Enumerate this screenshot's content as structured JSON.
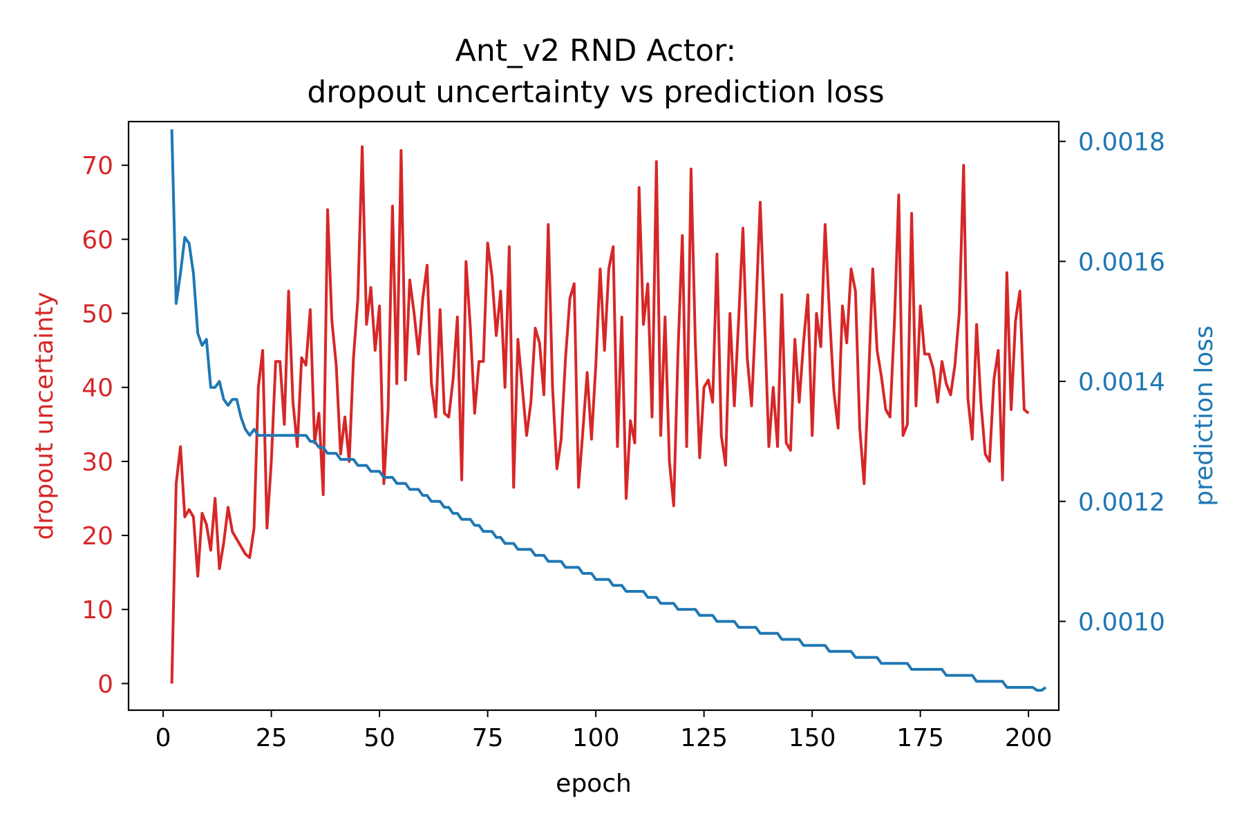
{
  "chart_data": {
    "type": "line",
    "title": "Ant_v2 RND Actor:",
    "subtitle": "dropout uncertainty vs prediction loss",
    "xlabel": "epoch",
    "x_ticks": [
      "0",
      "25",
      "50",
      "75",
      "100",
      "125",
      "150",
      "175",
      "200"
    ],
    "xlim": [
      -8,
      207
    ],
    "left_axis": {
      "label": "dropout uncertainty",
      "color": "#d62728",
      "ticks": [
        "0",
        "10",
        "20",
        "30",
        "40",
        "50",
        "60",
        "70"
      ],
      "ylim": [
        -3.6,
        75.9
      ]
    },
    "right_axis": {
      "label": "prediction loss",
      "color": "#1f77b4",
      "ticks": [
        "0.0010",
        "0.0012",
        "0.0014",
        "0.0016",
        "0.0018"
      ],
      "ylim": [
        0.000852,
        0.001833
      ]
    },
    "grid": false,
    "series": [
      {
        "axis": "left",
        "color": "#d62728",
        "x_start": 2,
        "x_step": 1,
        "values": [
          0,
          27,
          32,
          22.5,
          23.5,
          22.5,
          14.5,
          23,
          21.5,
          18,
          25,
          15.5,
          19,
          23.8,
          20.5,
          19.5,
          18.5,
          17.5,
          17,
          21,
          40,
          45,
          21,
          30,
          43.5,
          43.5,
          35,
          53,
          38,
          32,
          44,
          43,
          50.5,
          32.5,
          36.5,
          25.5,
          64,
          49,
          43,
          31,
          36,
          30,
          44,
          52,
          72.5,
          48.5,
          53.5,
          45,
          51,
          27,
          37,
          64.5,
          40.5,
          72,
          41,
          54.5,
          50,
          44.5,
          52,
          56.5,
          40.5,
          36,
          50.5,
          36.5,
          36,
          41,
          49.5,
          27.5,
          57,
          48,
          36.5,
          43.5,
          43.5,
          59.5,
          55,
          47,
          53,
          40,
          59,
          26.5,
          46.5,
          40,
          33.5,
          38,
          48,
          46,
          39,
          62,
          40,
          29,
          33,
          44,
          52,
          54,
          26.5,
          34,
          42,
          33,
          43,
          56,
          45,
          56,
          59,
          32,
          49.5,
          25,
          35.5,
          32.5,
          67,
          48.5,
          54,
          36,
          70.5,
          33.5,
          49.5,
          30,
          24,
          45,
          60.5,
          32,
          69.5,
          46,
          30.5,
          40,
          41,
          38,
          58,
          33.5,
          29.5,
          50,
          37.5,
          49,
          61.5,
          44,
          37.5,
          50.5,
          65,
          49,
          32,
          40,
          32,
          52.5,
          32.5,
          31.5,
          46.5,
          38,
          46,
          52.5,
          33.5,
          50,
          45.5,
          62,
          50,
          39.5,
          34.5,
          51,
          46,
          56,
          53,
          34.5,
          27,
          40.5,
          56,
          45,
          41.5,
          37,
          36,
          48.5,
          66,
          33.5,
          35,
          63.5,
          37.5,
          51,
          44.5,
          44.5,
          42.5,
          38,
          43.5,
          40.5,
          39,
          43,
          50,
          70,
          38.5,
          33,
          48.5,
          38,
          31,
          30,
          41,
          45,
          27.5,
          55.5,
          37,
          49,
          53,
          37,
          36.5
        ]
      },
      {
        "axis": "right",
        "color": "#1f77b4",
        "x_start": 2,
        "x_step": 1,
        "values": [
          0.00182,
          0.00153,
          0.00158,
          0.00164,
          0.00163,
          0.00158,
          0.00148,
          0.00146,
          0.00147,
          0.00139,
          0.00139,
          0.0014,
          0.00137,
          0.00136,
          0.00137,
          0.00137,
          0.00134,
          0.00132,
          0.00131,
          0.00132,
          0.00131,
          0.00131,
          0.00131,
          0.00131,
          0.00131,
          0.00131,
          0.00131,
          0.00131,
          0.00131,
          0.00131,
          0.00131,
          0.00131,
          0.0013,
          0.0013,
          0.00129,
          0.00129,
          0.00128,
          0.00128,
          0.00128,
          0.00127,
          0.00127,
          0.00127,
          0.00127,
          0.00126,
          0.00126,
          0.00126,
          0.00125,
          0.00125,
          0.00125,
          0.00124,
          0.00124,
          0.00124,
          0.00123,
          0.00123,
          0.00123,
          0.00122,
          0.00122,
          0.00122,
          0.00121,
          0.00121,
          0.0012,
          0.0012,
          0.0012,
          0.00119,
          0.00119,
          0.00118,
          0.00118,
          0.00117,
          0.00117,
          0.00117,
          0.00116,
          0.00116,
          0.00115,
          0.00115,
          0.00115,
          0.00114,
          0.00114,
          0.00113,
          0.00113,
          0.00113,
          0.00112,
          0.00112,
          0.00112,
          0.00112,
          0.00111,
          0.00111,
          0.00111,
          0.0011,
          0.0011,
          0.0011,
          0.0011,
          0.00109,
          0.00109,
          0.00109,
          0.00109,
          0.00108,
          0.00108,
          0.00108,
          0.00107,
          0.00107,
          0.00107,
          0.00107,
          0.00106,
          0.00106,
          0.00106,
          0.00105,
          0.00105,
          0.00105,
          0.00105,
          0.00105,
          0.00104,
          0.00104,
          0.00104,
          0.00103,
          0.00103,
          0.00103,
          0.00103,
          0.00102,
          0.00102,
          0.00102,
          0.00102,
          0.00102,
          0.00101,
          0.00101,
          0.00101,
          0.00101,
          0.001,
          0.001,
          0.001,
          0.001,
          0.001,
          0.00099,
          0.00099,
          0.00099,
          0.00099,
          0.00099,
          0.00098,
          0.00098,
          0.00098,
          0.00098,
          0.00098,
          0.00097,
          0.00097,
          0.00097,
          0.00097,
          0.00097,
          0.00096,
          0.00096,
          0.00096,
          0.00096,
          0.00096,
          0.00096,
          0.00095,
          0.00095,
          0.00095,
          0.00095,
          0.00095,
          0.00095,
          0.00094,
          0.00094,
          0.00094,
          0.00094,
          0.00094,
          0.00094,
          0.00093,
          0.00093,
          0.00093,
          0.00093,
          0.00093,
          0.00093,
          0.00093,
          0.00092,
          0.00092,
          0.00092,
          0.00092,
          0.00092,
          0.00092,
          0.00092,
          0.00092,
          0.00091,
          0.00091,
          0.00091,
          0.00091,
          0.00091,
          0.00091,
          0.00091,
          0.0009,
          0.0009,
          0.0009,
          0.0009,
          0.0009,
          0.0009,
          0.0009,
          0.00089,
          0.00089,
          0.00089,
          0.00089,
          0.00089,
          0.00089,
          0.00089,
          0.000885,
          0.000885,
          0.00089
        ]
      }
    ]
  }
}
